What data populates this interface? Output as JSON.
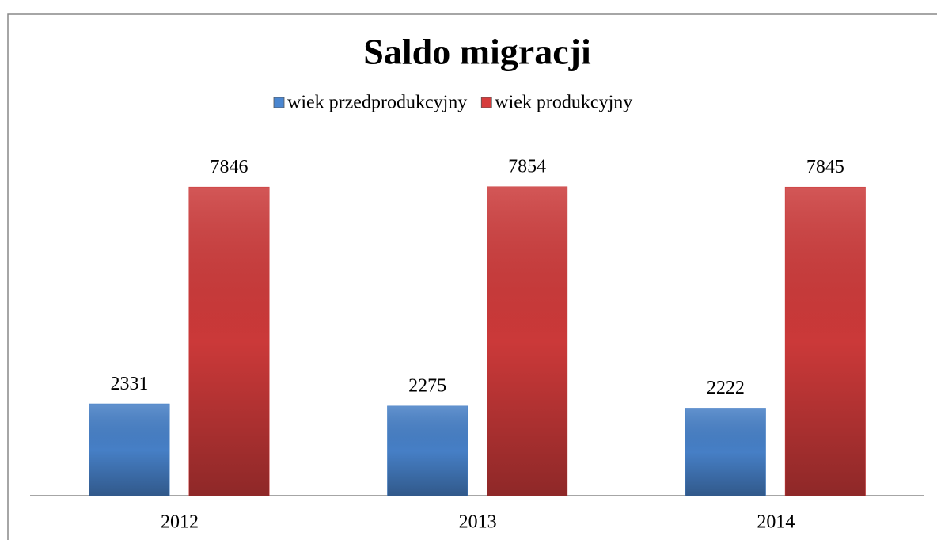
{
  "chart_data": {
    "type": "bar",
    "title": "Saldo migracji",
    "categories": [
      "2012",
      "2013",
      "2014"
    ],
    "series": [
      {
        "name": "wiek przedprodukcyjny",
        "color": "#4a86d0",
        "values": [
          2331,
          2275,
          2222
        ]
      },
      {
        "name": "wiek produkcyjny",
        "color": "#d63c3c",
        "values": [
          7846,
          7854,
          7845
        ]
      }
    ],
    "legend": "top"
  }
}
